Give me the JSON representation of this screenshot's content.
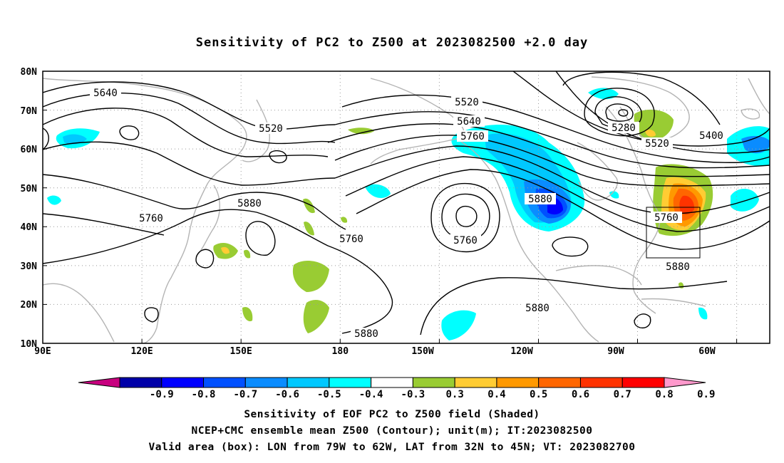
{
  "title": "Sensitivity of PC2 to Z500 at 2023082500 +2.0 day",
  "map": {
    "lon_range_degE": [
      90,
      310
    ],
    "lat_range_degN": [
      10,
      80
    ],
    "lat_ticks": [
      "80N",
      "70N",
      "60N",
      "50N",
      "40N",
      "30N",
      "20N",
      "10N"
    ],
    "lon_ticks": [
      "90E",
      "120E",
      "150E",
      "180",
      "150W",
      "120W",
      "90W",
      "60W"
    ],
    "grid_lines": "dotted",
    "coastline_color": "#b4b4b4",
    "contour_color": "#000000",
    "contour_labels": [
      "5640",
      "5520",
      "5520",
      "5640",
      "5760",
      "5280",
      "5520",
      "5400",
      "5880",
      "5760",
      "5760",
      "5880",
      "5760",
      "5760",
      "5880",
      "5880",
      "5880"
    ],
    "valid_box": {
      "lon_west": -79,
      "lon_east": -62,
      "lat_south": 32,
      "lat_north": 45
    }
  },
  "colorbar": {
    "labels": [
      "-0.9",
      "-0.8",
      "-0.7",
      "-0.6",
      "-0.5",
      "-0.4",
      "-0.3",
      "0.3",
      "0.4",
      "0.5",
      "0.6",
      "0.7",
      "0.8",
      "0.9"
    ],
    "colors": [
      "#c8007f",
      "#0000a8",
      "#0000ff",
      "#0050ff",
      "#0a8cff",
      "#00c8ff",
      "#00ffff",
      "#ffffff",
      "#99cc33",
      "#ffcc33",
      "#ff9900",
      "#ff6600",
      "#ff3300",
      "#ff0000",
      "#ff99cc"
    ]
  },
  "captions": [
    "Sensitivity of EOF PC2 to Z500 field (Shaded)",
    "NCEP+CMC ensemble mean Z500 (Contour); unit(m); IT:2023082500",
    "Valid area (box): LON from 79W to 62W, LAT from 32N to 45N; VT: 2023082700"
  ]
}
